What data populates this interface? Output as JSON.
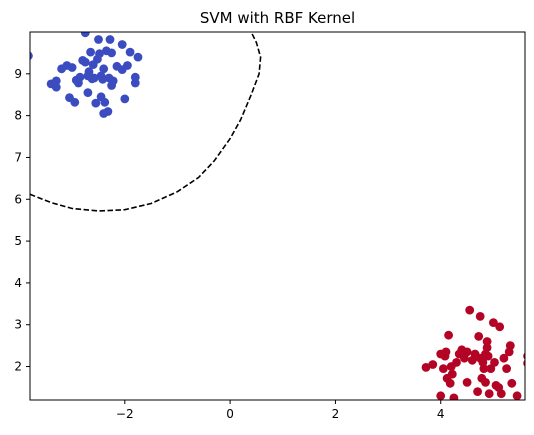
{
  "chart_data": {
    "type": "scatter",
    "title": "SVM with RBF Kernel",
    "xlabel": "",
    "ylabel": "",
    "xlim": [
      -3.8,
      5.6
    ],
    "ylim": [
      1.2,
      10.0
    ],
    "xticks": [
      -2,
      0,
      2,
      4
    ],
    "yticks": [
      2,
      3,
      4,
      5,
      6,
      7,
      8,
      9
    ],
    "grid": false,
    "legend": "none",
    "colors": {
      "class_0": "#3b4cc0",
      "class_1": "#b40426",
      "boundary": "#000000"
    },
    "series": [
      {
        "points": [
          [
            -3.83,
            9.43
          ],
          [
            -3.4,
            8.76
          ],
          [
            -3.3,
            8.83
          ],
          [
            -3.3,
            8.68
          ],
          [
            -3.2,
            9.12
          ],
          [
            -3.1,
            9.2
          ],
          [
            -3.05,
            8.43
          ],
          [
            -3.0,
            9.15
          ],
          [
            -2.95,
            8.32
          ],
          [
            -2.92,
            8.85
          ],
          [
            -2.88,
            8.78
          ],
          [
            -2.85,
            8.92
          ],
          [
            -2.8,
            9.32
          ],
          [
            -2.75,
            9.98
          ],
          [
            -2.75,
            9.28
          ],
          [
            -2.7,
            8.95
          ],
          [
            -2.7,
            8.55
          ],
          [
            -2.68,
            9.05
          ],
          [
            -2.65,
            9.52
          ],
          [
            -2.62,
            8.88
          ],
          [
            -2.6,
            9.22
          ],
          [
            -2.58,
            8.9
          ],
          [
            -2.55,
            8.3
          ],
          [
            -2.52,
            9.35
          ],
          [
            -2.5,
            9.82
          ],
          [
            -2.48,
            9.48
          ],
          [
            -2.45,
            8.95
          ],
          [
            -2.45,
            8.45
          ],
          [
            -2.42,
            8.87
          ],
          [
            -2.4,
            9.12
          ],
          [
            -2.4,
            8.05
          ],
          [
            -2.38,
            8.32
          ],
          [
            -2.35,
            9.55
          ],
          [
            -2.32,
            8.1
          ],
          [
            -2.3,
            8.9
          ],
          [
            -2.28,
            9.82
          ],
          [
            -2.25,
            9.5
          ],
          [
            -2.25,
            8.72
          ],
          [
            -2.22,
            8.83
          ],
          [
            -2.15,
            9.18
          ],
          [
            -2.05,
            9.1
          ],
          [
            -2.05,
            9.7
          ],
          [
            -2.0,
            8.4
          ],
          [
            -1.95,
            9.2
          ],
          [
            -1.9,
            9.52
          ],
          [
            -1.8,
            8.92
          ],
          [
            -1.8,
            8.78
          ],
          [
            -1.75,
            9.4
          ]
        ]
      },
      {
        "points": [
          [
            3.72,
            1.98
          ],
          [
            3.85,
            2.05
          ],
          [
            4.0,
            2.3
          ],
          [
            4.0,
            1.3
          ],
          [
            4.05,
            1.95
          ],
          [
            4.08,
            2.25
          ],
          [
            4.1,
            2.35
          ],
          [
            4.12,
            1.72
          ],
          [
            4.15,
            2.75
          ],
          [
            4.18,
            1.6
          ],
          [
            4.2,
            2.0
          ],
          [
            4.22,
            1.82
          ],
          [
            4.25,
            1.25
          ],
          [
            4.3,
            2.1
          ],
          [
            4.35,
            2.3
          ],
          [
            4.4,
            2.4
          ],
          [
            4.45,
            2.2
          ],
          [
            4.5,
            1.62
          ],
          [
            4.5,
            2.35
          ],
          [
            4.55,
            3.35
          ],
          [
            4.6,
            2.15
          ],
          [
            4.65,
            2.3
          ],
          [
            4.7,
            1.4
          ],
          [
            4.72,
            2.72
          ],
          [
            4.75,
            2.2
          ],
          [
            4.75,
            3.2
          ],
          [
            4.78,
            1.72
          ],
          [
            4.8,
            2.1
          ],
          [
            4.82,
            1.95
          ],
          [
            4.85,
            2.3
          ],
          [
            4.85,
            1.62
          ],
          [
            4.88,
            2.6
          ],
          [
            4.88,
            2.45
          ],
          [
            4.9,
            2.25
          ],
          [
            4.92,
            1.35
          ],
          [
            4.95,
            1.95
          ],
          [
            5.0,
            3.05
          ],
          [
            5.02,
            2.1
          ],
          [
            5.05,
            1.55
          ],
          [
            5.1,
            1.5
          ],
          [
            5.12,
            2.95
          ],
          [
            5.15,
            1.35
          ],
          [
            5.2,
            2.2
          ],
          [
            5.25,
            1.95
          ],
          [
            5.3,
            2.35
          ],
          [
            5.32,
            2.5
          ],
          [
            5.35,
            1.6
          ],
          [
            5.45,
            1.3
          ],
          [
            5.65,
            2.25
          ],
          [
            5.65,
            2.08
          ]
        ]
      }
    ],
    "boundary": [
      [
        -3.8,
        6.12
      ],
      [
        -3.4,
        5.92
      ],
      [
        -3.0,
        5.78
      ],
      [
        -2.5,
        5.72
      ],
      [
        -2.0,
        5.75
      ],
      [
        -1.5,
        5.9
      ],
      [
        -1.0,
        6.18
      ],
      [
        -0.6,
        6.52
      ],
      [
        -0.3,
        6.92
      ],
      [
        0.0,
        7.45
      ],
      [
        0.2,
        7.9
      ],
      [
        0.4,
        8.5
      ],
      [
        0.55,
        9.0
      ],
      [
        0.58,
        9.4
      ],
      [
        0.5,
        9.75
      ],
      [
        0.4,
        10.0
      ]
    ]
  }
}
